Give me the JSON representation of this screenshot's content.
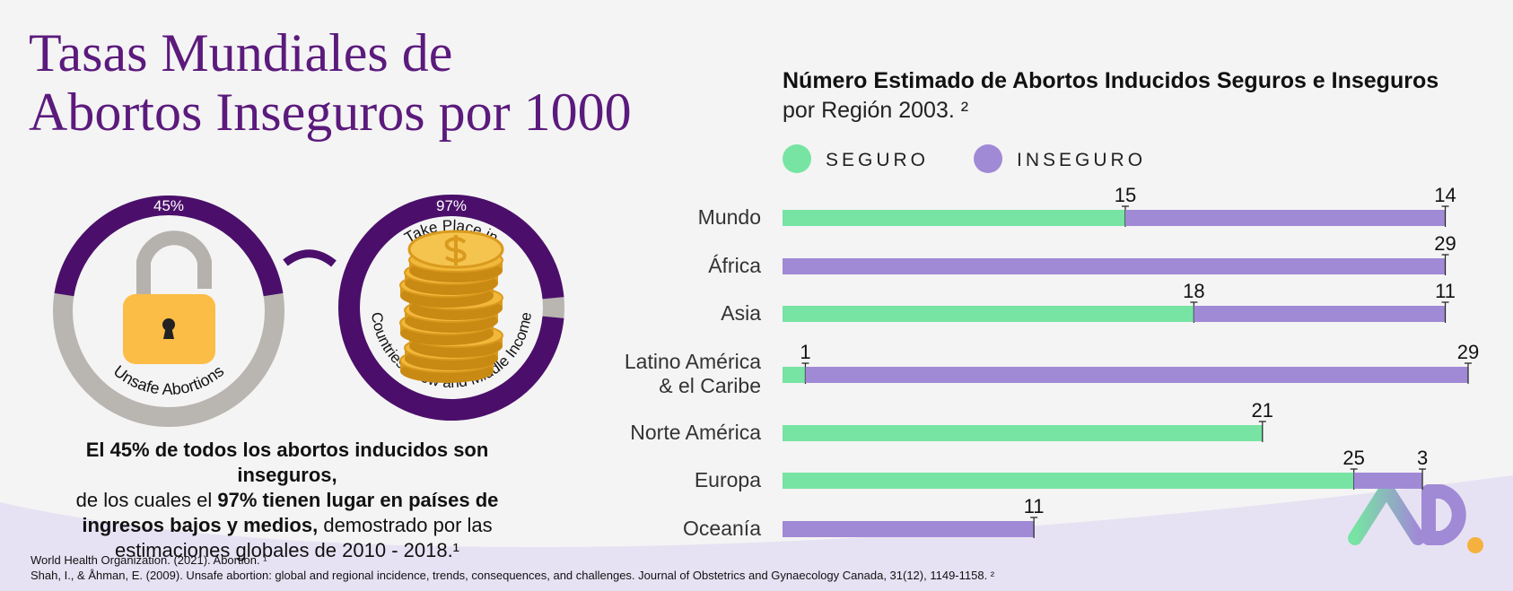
{
  "title": [
    "Tasas Mundiales de",
    "Abortos Inseguros por 1000"
  ],
  "rings": [
    {
      "value": 45,
      "label": "45%",
      "caption": "Unsafe Abortions"
    },
    {
      "value": 97,
      "label": "97%",
      "caption_top": "Take Place in",
      "caption": "Countries - Low and Middle Income"
    }
  ],
  "summary": [
    [
      {
        "text": "El 45% de todos los abortos inducidos son inseguros,",
        "bold": true
      }
    ],
    [
      {
        "text": "de los cuales el ",
        "bold": false
      },
      {
        "text": "97% tienen lugar en países de",
        "bold": true
      }
    ],
    [
      {
        "text": "ingresos bajos y medios,",
        "bold": true
      },
      {
        "text": " demostrado por las",
        "bold": false
      }
    ],
    [
      {
        "text": "estimaciones globales de 2010 - 2018.¹",
        "bold": false
      }
    ]
  ],
  "references": [
    "World Health Organization. (2021). Abortion. ¹",
    "Shah, I., & Åhman, E. (2009). Unsafe abortion: global and regional incidence, trends, consequences, and challenges. Journal of Obstetrics and Gynaecology Canada, 31(12), 1149-1158. ²"
  ],
  "chart_data": {
    "type": "stacked-barh",
    "title": "Número Estimado de Abortos Inducidos Seguros e Inseguros",
    "subtitle": "por Región 2003. ²",
    "categories": [
      "Mundo",
      "África",
      "Asia",
      "Latino América & el Caribe",
      "Norte América",
      "Europa",
      "Oceanía"
    ],
    "series": [
      {
        "name": "SEGURO",
        "color": "#77e4a3",
        "values": [
          15,
          null,
          18,
          1,
          21,
          25,
          null
        ]
      },
      {
        "name": "INSEGURO",
        "color": "#a08ad6",
        "values": [
          14,
          29,
          11,
          29,
          null,
          3,
          11
        ]
      }
    ],
    "xlim": [
      0,
      30
    ],
    "legend": "top-left"
  }
}
